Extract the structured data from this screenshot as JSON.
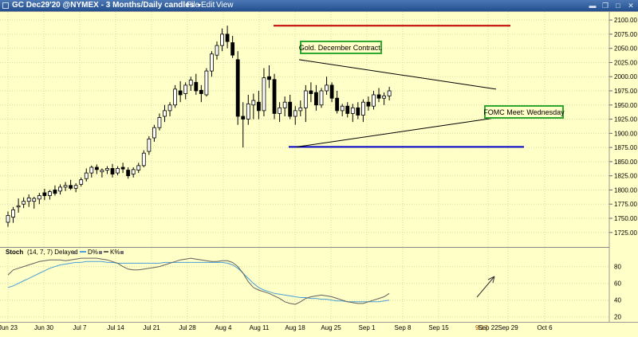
{
  "window": {
    "title": "GC Dec29'20 @NYMEX - 3 Months/Daily candles",
    "menu": [
      "File",
      "Edit",
      "View"
    ]
  },
  "chart_data": [
    {
      "type": "candlestick",
      "title": "Gold. December Contract.",
      "annotation": "FOMC Meet: Wednesday",
      "ylim": [
        1705,
        2110
      ],
      "y_ticks": [
        1725,
        1750,
        1775,
        1800,
        1825,
        1850,
        1875,
        1900,
        1925,
        1950,
        1975,
        2000,
        2025,
        2050,
        2075,
        2100
      ],
      "x_labels": [
        "Jun 23",
        "Jun 30",
        "Jul 7",
        "Jul 14",
        "Jul 21",
        "Jul 28",
        "Aug 4",
        "Aug 11",
        "Aug 18",
        "Aug 25",
        "Sep 1",
        "Sep 8",
        "Sep 15",
        "9/17",
        "Sep 22",
        "Sep 29",
        "Oct 6"
      ],
      "candles": [
        {
          "o": 1743,
          "h": 1762,
          "l": 1735,
          "c": 1755
        },
        {
          "o": 1752,
          "h": 1770,
          "l": 1742,
          "c": 1765
        },
        {
          "o": 1770,
          "h": 1785,
          "l": 1760,
          "c": 1772
        },
        {
          "o": 1775,
          "h": 1787,
          "l": 1768,
          "c": 1780
        },
        {
          "o": 1780,
          "h": 1792,
          "l": 1770,
          "c": 1786
        },
        {
          "o": 1780,
          "h": 1788,
          "l": 1767,
          "c": 1785
        },
        {
          "o": 1784,
          "h": 1795,
          "l": 1775,
          "c": 1790
        },
        {
          "o": 1795,
          "h": 1802,
          "l": 1782,
          "c": 1790
        },
        {
          "o": 1790,
          "h": 1800,
          "l": 1783,
          "c": 1797
        },
        {
          "o": 1800,
          "h": 1808,
          "l": 1790,
          "c": 1794
        },
        {
          "o": 1798,
          "h": 1810,
          "l": 1792,
          "c": 1805
        },
        {
          "o": 1805,
          "h": 1814,
          "l": 1798,
          "c": 1808
        },
        {
          "o": 1808,
          "h": 1818,
          "l": 1800,
          "c": 1803
        },
        {
          "o": 1803,
          "h": 1812,
          "l": 1796,
          "c": 1808
        },
        {
          "o": 1810,
          "h": 1822,
          "l": 1806,
          "c": 1818
        },
        {
          "o": 1820,
          "h": 1838,
          "l": 1815,
          "c": 1830
        },
        {
          "o": 1830,
          "h": 1843,
          "l": 1822,
          "c": 1840
        },
        {
          "o": 1840,
          "h": 1845,
          "l": 1828,
          "c": 1836
        },
        {
          "o": 1832,
          "h": 1838,
          "l": 1822,
          "c": 1835
        },
        {
          "o": 1835,
          "h": 1842,
          "l": 1828,
          "c": 1838
        },
        {
          "o": 1838,
          "h": 1846,
          "l": 1822,
          "c": 1828
        },
        {
          "o": 1830,
          "h": 1842,
          "l": 1826,
          "c": 1838
        },
        {
          "o": 1840,
          "h": 1848,
          "l": 1830,
          "c": 1837
        },
        {
          "o": 1835,
          "h": 1840,
          "l": 1820,
          "c": 1825
        },
        {
          "o": 1828,
          "h": 1840,
          "l": 1822,
          "c": 1836
        },
        {
          "o": 1835,
          "h": 1848,
          "l": 1830,
          "c": 1843
        },
        {
          "o": 1843,
          "h": 1870,
          "l": 1840,
          "c": 1865
        },
        {
          "o": 1868,
          "h": 1895,
          "l": 1862,
          "c": 1890
        },
        {
          "o": 1892,
          "h": 1915,
          "l": 1885,
          "c": 1910
        },
        {
          "o": 1910,
          "h": 1935,
          "l": 1905,
          "c": 1928
        },
        {
          "o": 1930,
          "h": 1950,
          "l": 1920,
          "c": 1940
        },
        {
          "o": 1940,
          "h": 1955,
          "l": 1930,
          "c": 1950
        },
        {
          "o": 1950,
          "h": 1985,
          "l": 1945,
          "c": 1978
        },
        {
          "o": 1975,
          "h": 1992,
          "l": 1955,
          "c": 1968
        },
        {
          "o": 1970,
          "h": 1990,
          "l": 1960,
          "c": 1985
        },
        {
          "o": 1985,
          "h": 2000,
          "l": 1975,
          "c": 1994
        },
        {
          "o": 1990,
          "h": 2005,
          "l": 1968,
          "c": 1975
        },
        {
          "o": 1976,
          "h": 1985,
          "l": 1955,
          "c": 1970
        },
        {
          "o": 1968,
          "h": 2015,
          "l": 1965,
          "c": 2010
        },
        {
          "o": 2010,
          "h": 2045,
          "l": 2000,
          "c": 2040
        },
        {
          "o": 2038,
          "h": 2062,
          "l": 2030,
          "c": 2055
        },
        {
          "o": 2055,
          "h": 2085,
          "l": 2045,
          "c": 2075
        },
        {
          "o": 2075,
          "h": 2090,
          "l": 2050,
          "c": 2062
        },
        {
          "o": 2060,
          "h": 2072,
          "l": 2033,
          "c": 2038
        },
        {
          "o": 2030,
          "h": 2045,
          "l": 1915,
          "c": 1930
        },
        {
          "o": 1930,
          "h": 1955,
          "l": 1875,
          "c": 1925
        },
        {
          "o": 1925,
          "h": 1968,
          "l": 1915,
          "c": 1952
        },
        {
          "o": 1950,
          "h": 1970,
          "l": 1925,
          "c": 1958
        },
        {
          "o": 1955,
          "h": 1975,
          "l": 1925,
          "c": 1940
        },
        {
          "o": 1940,
          "h": 2015,
          "l": 1930,
          "c": 1998
        },
        {
          "o": 2000,
          "h": 2020,
          "l": 1980,
          "c": 1995
        },
        {
          "o": 1995,
          "h": 2005,
          "l": 1925,
          "c": 1935
        },
        {
          "o": 1935,
          "h": 1955,
          "l": 1920,
          "c": 1945
        },
        {
          "o": 1945,
          "h": 1965,
          "l": 1930,
          "c": 1955
        },
        {
          "o": 1955,
          "h": 1968,
          "l": 1925,
          "c": 1930
        },
        {
          "o": 1930,
          "h": 1948,
          "l": 1915,
          "c": 1940
        },
        {
          "o": 1940,
          "h": 1958,
          "l": 1930,
          "c": 1945
        },
        {
          "o": 1945,
          "h": 1985,
          "l": 1920,
          "c": 1975
        },
        {
          "o": 1975,
          "h": 1990,
          "l": 1955,
          "c": 1970
        },
        {
          "o": 1972,
          "h": 1985,
          "l": 1940,
          "c": 1950
        },
        {
          "o": 1950,
          "h": 1980,
          "l": 1945,
          "c": 1975
        },
        {
          "o": 1975,
          "h": 2000,
          "l": 1968,
          "c": 1985
        },
        {
          "o": 1985,
          "h": 1990,
          "l": 1955,
          "c": 1962
        },
        {
          "o": 1962,
          "h": 1975,
          "l": 1935,
          "c": 1940
        },
        {
          "o": 1940,
          "h": 1952,
          "l": 1930,
          "c": 1948
        },
        {
          "o": 1948,
          "h": 1955,
          "l": 1928,
          "c": 1935
        },
        {
          "o": 1935,
          "h": 1952,
          "l": 1920,
          "c": 1945
        },
        {
          "o": 1945,
          "h": 1955,
          "l": 1925,
          "c": 1932
        },
        {
          "o": 1932,
          "h": 1960,
          "l": 1920,
          "c": 1955
        },
        {
          "o": 1955,
          "h": 1965,
          "l": 1940,
          "c": 1948
        },
        {
          "o": 1948,
          "h": 1975,
          "l": 1942,
          "c": 1968
        },
        {
          "o": 1968,
          "h": 1980,
          "l": 1955,
          "c": 1962
        },
        {
          "o": 1962,
          "h": 1972,
          "l": 1950,
          "c": 1966
        },
        {
          "o": 1966,
          "h": 1982,
          "l": 1958,
          "c": 1975
        }
      ],
      "levels": [
        {
          "name": "resistance",
          "y": 2090,
          "color": "#c00000"
        },
        {
          "name": "support",
          "y": 1876,
          "color": "#0000c8"
        }
      ],
      "trendlines": [
        {
          "name": "upper-triangle-line",
          "y": [
            2030,
            1978
          ],
          "color": "#000000"
        },
        {
          "name": "lower-triangle-line",
          "y": [
            1876,
            1928
          ],
          "color": "#000000"
        }
      ]
    },
    {
      "type": "line",
      "title": "Stoch",
      "params": "(14, 7, 7) Delayed",
      "series": [
        {
          "name": "D%",
          "color": "#4aa0d8",
          "values": [
            55,
            57,
            60,
            63,
            66,
            69,
            72,
            75,
            78,
            80,
            82,
            83,
            84,
            85,
            85,
            86,
            86,
            86,
            86,
            85,
            85,
            84,
            84,
            84,
            84,
            84,
            84,
            84,
            84,
            84,
            85,
            85,
            85,
            85,
            85,
            85,
            85,
            85,
            85,
            85,
            85,
            85,
            84,
            82,
            78,
            72,
            66,
            60,
            55,
            52,
            50,
            48,
            47,
            46,
            45,
            44,
            43,
            43,
            42,
            42,
            41,
            41,
            40,
            39,
            39,
            38,
            38,
            38,
            38,
            38,
            38,
            38,
            39,
            40
          ]
        },
        {
          "name": "K%",
          "color": "#606060",
          "values": [
            70,
            76,
            78,
            80,
            82,
            84,
            86,
            87,
            88,
            88,
            88,
            87,
            88,
            89,
            90,
            90,
            90,
            90,
            89,
            88,
            86,
            84,
            80,
            77,
            76,
            76,
            77,
            78,
            79,
            80,
            82,
            84,
            86,
            88,
            89,
            90,
            89,
            88,
            87,
            86,
            86,
            87,
            87,
            85,
            80,
            72,
            62,
            55,
            52,
            50,
            48,
            45,
            42,
            38,
            36,
            35,
            38,
            42,
            44,
            45,
            46,
            45,
            44,
            42,
            40,
            38,
            37,
            36,
            36,
            38,
            40,
            42,
            44,
            48
          ]
        }
      ],
      "ylim": [
        15,
        92
      ],
      "y_ticks": [
        20,
        40,
        60,
        80
      ]
    }
  ]
}
